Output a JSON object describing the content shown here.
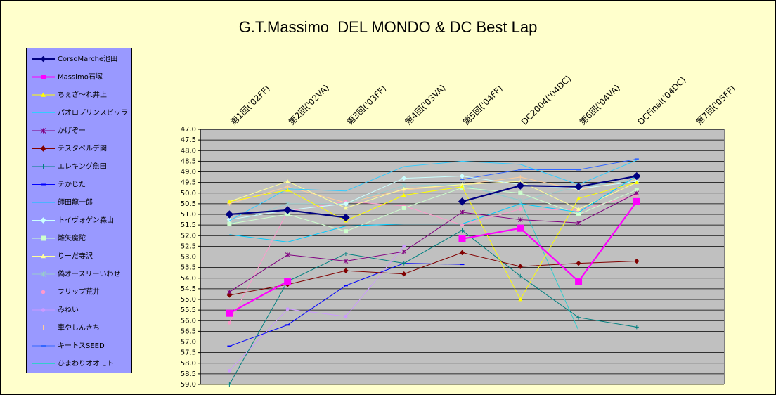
{
  "chart_data": {
    "type": "line",
    "title": "G.T.Massimo  DEL MONDO & DC Best Lap",
    "categories": [
      "第1回('02FF)",
      "第2回('02VA)",
      "第3回('03FF)",
      "第4回('03VA)",
      "第5回('04FF)",
      "DC2004('04DC)",
      "第6回('04VA)",
      "DCFinal('04DC)",
      "第7回('05FF)"
    ],
    "ylim": [
      47,
      59
    ],
    "y_inverted": true,
    "yticks": [
      {
        "value": 47,
        "label": "47.0"
      },
      47.5,
      {
        "value": 48,
        "label": "48.0"
      },
      48.5,
      {
        "value": 49,
        "label": "49.0"
      },
      49.5,
      {
        "value": 50,
        "label": "50.0"
      },
      50.5,
      {
        "value": 51,
        "label": "51.0"
      },
      51.5,
      {
        "value": 52,
        "label": "52.0"
      },
      52.5,
      {
        "value": 53,
        "label": "53.0"
      },
      53.5,
      {
        "value": 54,
        "label": "54.0"
      },
      54.5,
      {
        "value": 55,
        "label": "55.0"
      },
      55.5,
      {
        "value": 56,
        "label": "56.0"
      },
      56.5,
      {
        "value": 57,
        "label": "57.0"
      },
      57.5,
      {
        "value": 58,
        "label": "58.0"
      },
      58.5,
      {
        "value": 59,
        "label": "59.0"
      }
    ],
    "grid": true,
    "legend": "left",
    "series": [
      {
        "name": "CorsoMarche池田",
        "color": "#000080",
        "marker": "diamond",
        "values": [
          51.0,
          50.8,
          51.15,
          null,
          50.4,
          49.65,
          49.7,
          49.2,
          null
        ]
      },
      {
        "name": "Massimo石塚",
        "color": "#ff00ff",
        "marker": "square",
        "values": [
          55.65,
          54.15,
          null,
          null,
          52.15,
          51.65,
          54.15,
          50.4,
          null
        ]
      },
      {
        "name": "ちぇざ〜れ井上",
        "color": "#ffff00",
        "marker": "triangle",
        "values": [
          50.4,
          49.85,
          51.3,
          50.1,
          49.7,
          55.0,
          50.25,
          49.5,
          null
        ]
      },
      {
        "name": "パオロプリンスピッラ",
        "color": "#33ccff",
        "marker": "none",
        "values": [
          51.3,
          49.8,
          49.9,
          48.75,
          48.5,
          48.65,
          49.6,
          48.45,
          null
        ]
      },
      {
        "name": "かげぞー",
        "color": "#800080",
        "marker": "star",
        "values": [
          54.65,
          52.9,
          53.2,
          52.75,
          50.9,
          51.25,
          51.4,
          50.0,
          null
        ]
      },
      {
        "name": "テスタベルデ関",
        "color": "#800000",
        "marker": "diamond",
        "values": [
          54.8,
          54.3,
          53.65,
          53.8,
          52.8,
          53.45,
          53.3,
          53.2,
          null
        ]
      },
      {
        "name": "エレキング魚田",
        "color": "#008080",
        "marker": "plus",
        "values": [
          59.0,
          54.15,
          52.85,
          53.3,
          51.75,
          53.9,
          55.85,
          56.3,
          null
        ]
      },
      {
        "name": "テかじた",
        "color": "#0000ff",
        "marker": "dash",
        "values": [
          57.2,
          56.2,
          54.35,
          53.3,
          53.35,
          null,
          null,
          null,
          null
        ]
      },
      {
        "name": "師田龍一郎",
        "color": "#00ccff",
        "marker": "none",
        "values": [
          51.95,
          52.3,
          51.55,
          51.45,
          51.45,
          50.5,
          50.9,
          49.2,
          null
        ]
      },
      {
        "name": "トイヴォゲン森山",
        "color": "#ccffff",
        "marker": "diamond",
        "values": [
          51.25,
          50.8,
          50.5,
          49.3,
          49.2,
          49.6,
          49.8,
          49.45,
          null
        ]
      },
      {
        "name": "雛矢魔陀",
        "color": "#ccffcc",
        "marker": "square",
        "values": [
          51.45,
          51.0,
          51.8,
          50.7,
          49.75,
          50.0,
          51.0,
          49.85,
          null
        ]
      },
      {
        "name": "りーだ寺沢",
        "color": "#ffff99",
        "marker": "triangle",
        "values": [
          50.4,
          49.45,
          50.7,
          49.8,
          49.6,
          49.45,
          50.75,
          49.5,
          null
        ]
      },
      {
        "name": "偽オースリーいわせ",
        "color": "#99cccc",
        "marker": "star",
        "values": [
          51.45,
          50.5,
          50.5,
          49.65,
          49.6,
          50.35,
          49.7,
          49.4,
          null
        ]
      },
      {
        "name": "フリップ荒井",
        "color": "#ff99cc",
        "marker": "circle",
        "values": [
          56.1,
          50.85,
          50.4,
          50.6,
          51.5,
          50.75,
          50.8,
          50.1,
          null
        ]
      },
      {
        "name": "みねい",
        "color": "#cc99ff",
        "marker": "circle",
        "values": [
          58.35,
          55.45,
          55.8,
          52.5,
          null,
          null,
          null,
          null,
          null
        ]
      },
      {
        "name": "車やしんきち",
        "color": "#ffcc99",
        "marker": "plus",
        "values": [
          50.5,
          49.7,
          50.45,
          49.85,
          49.6,
          49.25,
          49.85,
          49.35,
          null
        ]
      },
      {
        "name": "キートスSEED",
        "color": "#3366ff",
        "marker": "dash",
        "values": [
          null,
          null,
          null,
          null,
          49.35,
          48.9,
          48.9,
          48.4,
          null
        ]
      },
      {
        "name": "ひまわりオオモト",
        "color": "#33cccc",
        "marker": "none",
        "values": [
          null,
          null,
          null,
          null,
          49.6,
          50.35,
          56.45,
          null,
          null
        ]
      }
    ]
  }
}
